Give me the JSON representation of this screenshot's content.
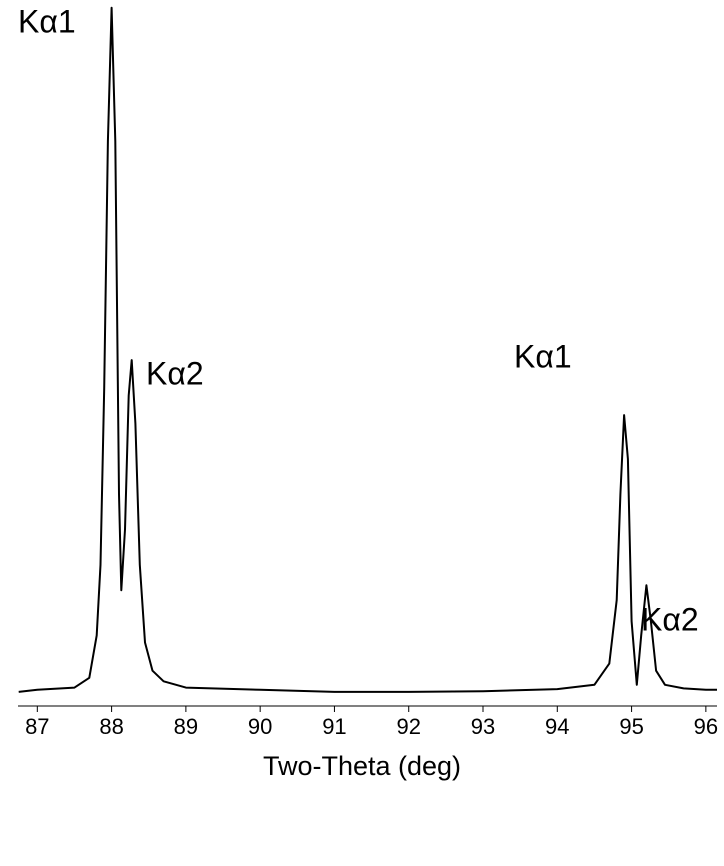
{
  "chart_data": {
    "type": "line",
    "x_label": "Two-Theta (deg)",
    "annotations": [
      "Kα1",
      "Kα2",
      "Kα1",
      "Kα2"
    ],
    "x": [
      86.75,
      87.0,
      87.5,
      87.7,
      87.8,
      87.85,
      87.9,
      87.95,
      88.0,
      88.05,
      88.1,
      88.13,
      88.18,
      88.23,
      88.27,
      88.32,
      88.38,
      88.45,
      88.55,
      88.7,
      89.0,
      90.0,
      91.0,
      92.0,
      93.0,
      94.0,
      94.5,
      94.7,
      94.8,
      94.85,
      94.9,
      94.95,
      95.0,
      95.07,
      95.13,
      95.2,
      95.26,
      95.33,
      95.45,
      95.7,
      96.0,
      96.15
    ],
    "series": [
      {
        "color": "#000000",
        "values": [
          2.0,
          2.3,
          2.6,
          4,
          10,
          20,
          45,
          80,
          98.9,
          80,
          30,
          16.4,
          25,
          44,
          49,
          40,
          20,
          9,
          5,
          3.5,
          2.6,
          2.3,
          2.0,
          2.0,
          2.1,
          2.4,
          3,
          6,
          15,
          30,
          41.2,
          35,
          12,
          3,
          10,
          17.1,
          12,
          5,
          3,
          2.5,
          2.3,
          2.3
        ]
      }
    ],
    "xlim": [
      86.74,
      96.15
    ],
    "ylim": [
      0,
      100
    ],
    "xticks": [
      87,
      88,
      89,
      90,
      91,
      92,
      93,
      94,
      95,
      96
    ]
  }
}
